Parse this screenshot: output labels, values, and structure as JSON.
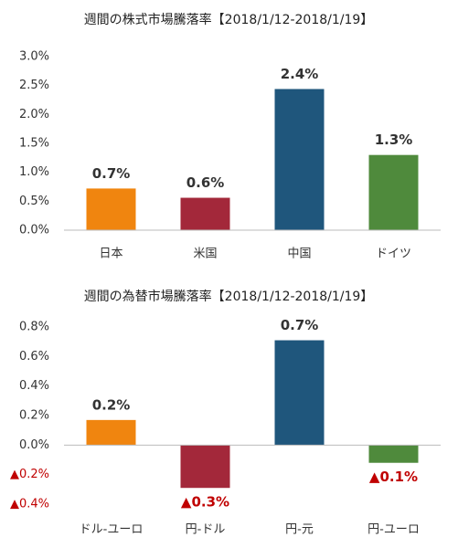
{
  "chart_data": [
    {
      "type": "bar",
      "title": "週間の株式市場騰落率【2018/1/12-2018/1/19】",
      "categories": [
        "日本",
        "米国",
        "中国",
        "ドイツ"
      ],
      "values": [
        0.72,
        0.56,
        2.44,
        1.3
      ],
      "value_labels": [
        "0.7%",
        "0.6%",
        "2.4%",
        "1.3%"
      ],
      "colors": [
        "#f0850f",
        "#a3283a",
        "#1f567c",
        "#4f8a3c"
      ],
      "ylim": [
        0,
        3
      ],
      "yticks": [
        {
          "value": 0,
          "label": "0.0%"
        },
        {
          "value": 0.5,
          "label": "0.5%"
        },
        {
          "value": 1,
          "label": "1.0%"
        },
        {
          "value": 1.5,
          "label": "1.5%"
        },
        {
          "value": 2,
          "label": "2.0%"
        },
        {
          "value": 2.5,
          "label": "2.5%"
        },
        {
          "value": 3,
          "label": "3.0%"
        }
      ],
      "grid": false,
      "negative_label_color": "#c00000"
    },
    {
      "type": "bar",
      "title": "週間の為替市場騰落率【2018/1/12-2018/1/19】",
      "categories": [
        "ドル-ユーロ",
        "円-ドル",
        "円-元",
        "円-ユーロ"
      ],
      "values": [
        0.17,
        -0.29,
        0.71,
        -0.12
      ],
      "value_labels": [
        "0.2%",
        "▲0.3%",
        "0.7%",
        "▲0.1%"
      ],
      "colors": [
        "#f0850f",
        "#a3283a",
        "#1f567c",
        "#4f8a3c"
      ],
      "ylim": [
        -0.4,
        0.8
      ],
      "yticks": [
        {
          "value": -0.4,
          "label": "▲0.4%"
        },
        {
          "value": -0.2,
          "label": "▲0.2%"
        },
        {
          "value": 0,
          "label": "0.0%"
        },
        {
          "value": 0.2,
          "label": "0.2%"
        },
        {
          "value": 0.4,
          "label": "0.4%"
        },
        {
          "value": 0.6,
          "label": "0.6%"
        },
        {
          "value": 0.8,
          "label": "0.8%"
        }
      ],
      "grid": false,
      "negative_label_color": "#c00000"
    }
  ]
}
